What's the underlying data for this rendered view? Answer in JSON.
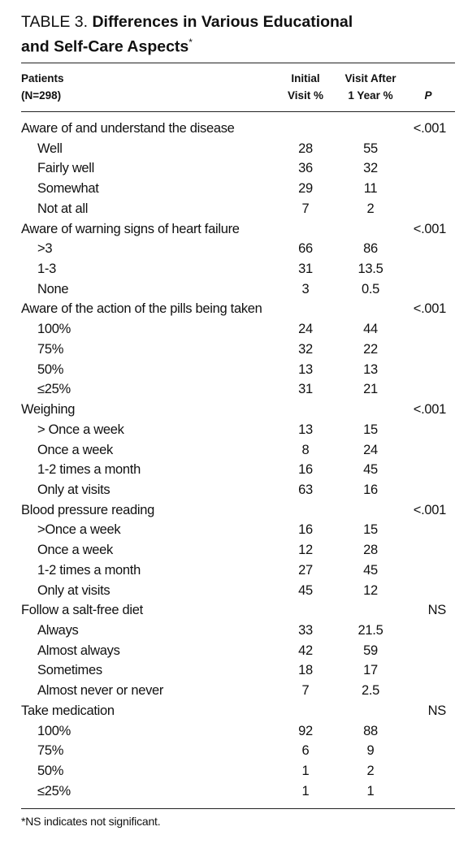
{
  "title": {
    "label": "TABLE 3.",
    "text_line1": "Differences in Various Educational",
    "text_line2": "and Self-Care Aspects",
    "mark": "*"
  },
  "header": {
    "col0": [
      "Patients",
      "(N=298)"
    ],
    "col1": [
      "Initial",
      "Visit %"
    ],
    "col2": [
      "Visit After",
      "1 Year %"
    ],
    "col3": "P"
  },
  "groups": [
    {
      "label": "Aware of and understand the disease",
      "p": "<.001",
      "items": [
        {
          "label": "Well",
          "initial": 28,
          "after": 55
        },
        {
          "label": "Fairly well",
          "initial": 36,
          "after": 32
        },
        {
          "label": "Somewhat",
          "initial": 29,
          "after": 11
        },
        {
          "label": "Not at all",
          "initial": 7,
          "after": 2
        }
      ]
    },
    {
      "label": "Aware of warning signs of heart failure",
      "p": "<.001",
      "items": [
        {
          "label": ">3",
          "initial": 66,
          "after": 86
        },
        {
          "label": "1-3",
          "initial": 31,
          "after": 13.5
        },
        {
          "label": "None",
          "initial": 3,
          "after": 0.5
        }
      ]
    },
    {
      "label": "Aware of the action of the pills being taken",
      "p": "<.001",
      "items": [
        {
          "label": "100%",
          "initial": 24,
          "after": 44
        },
        {
          "label": "75%",
          "initial": 32,
          "after": 22
        },
        {
          "label": "50%",
          "initial": 13,
          "after": 13
        },
        {
          "label": "≤25%",
          "initial": 31,
          "after": 21
        }
      ]
    },
    {
      "label": "Weighing",
      "p": "<.001",
      "items": [
        {
          "label": "> Once a week",
          "initial": 13,
          "after": 15
        },
        {
          "label": "Once a week",
          "initial": 8,
          "after": 24
        },
        {
          "label": "1-2 times a month",
          "initial": 16,
          "after": 45
        },
        {
          "label": "Only at visits",
          "initial": 63,
          "after": 16
        }
      ]
    },
    {
      "label": "Blood pressure reading",
      "p": "<.001",
      "items": [
        {
          "label": ">Once a week",
          "initial": 16,
          "after": 15
        },
        {
          "label": "Once a week",
          "initial": 12,
          "after": 28
        },
        {
          "label": "1-2 times a month",
          "initial": 27,
          "after": 45
        },
        {
          "label": "Only at visits",
          "initial": 45,
          "after": 12
        }
      ]
    },
    {
      "label": "Follow a salt-free diet",
      "p": "NS",
      "items": [
        {
          "label": "Always",
          "initial": 33,
          "after": 21.5
        },
        {
          "label": "Almost always",
          "initial": 42,
          "after": 59
        },
        {
          "label": "Sometimes",
          "initial": 18,
          "after": 17
        },
        {
          "label": "Almost never or never",
          "initial": 7,
          "after": 2.5
        }
      ]
    },
    {
      "label": "Take medication",
      "p": "NS",
      "items": [
        {
          "label": "100%",
          "initial": 92,
          "after": 88
        },
        {
          "label": "75%",
          "initial": 6,
          "after": 9
        },
        {
          "label": "50%",
          "initial": 1,
          "after": 2
        },
        {
          "label": "≤25%",
          "initial": 1,
          "after": 1
        }
      ]
    }
  ],
  "footnote": "*NS indicates not significant."
}
